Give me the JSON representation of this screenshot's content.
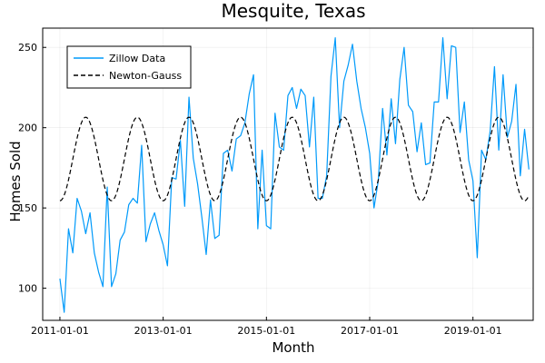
{
  "colors": {
    "zillow": "#009AFA",
    "newton": "#000000",
    "axis": "#000000",
    "background": "#ffffff"
  },
  "chart_data": {
    "type": "line",
    "title": "Mesquite, Texas",
    "xlabel": "Month",
    "ylabel": "Homes Sold",
    "xlim": [
      "2010-09-01",
      "2020-03-01"
    ],
    "ylim": [
      80,
      262
    ],
    "x_ticks": [
      "2011-01-01",
      "2013-01-01",
      "2015-01-01",
      "2017-01-01",
      "2019-01-01"
    ],
    "y_ticks": [
      100,
      150,
      200,
      250
    ],
    "grid": true,
    "legend_position": "top-left",
    "series": [
      {
        "name": "Zillow Data",
        "style": "solid",
        "start": "2011-01-01",
        "step": "month",
        "values": [
          106,
          85,
          137,
          122,
          156,
          148,
          134,
          147,
          122,
          110,
          101,
          163,
          101,
          109,
          130,
          135,
          152,
          156,
          153,
          189,
          129,
          140,
          147,
          136,
          127,
          114,
          169,
          168,
          192,
          151,
          219,
          181,
          165,
          144,
          121,
          155,
          131,
          133,
          184,
          186,
          173,
          193,
          195,
          203,
          221,
          233,
          137,
          186,
          139,
          137,
          209,
          188,
          186,
          220,
          225,
          212,
          224,
          220,
          188,
          219,
          156,
          156,
          170,
          232,
          256,
          200,
          229,
          239,
          252,
          229,
          212,
          200,
          184,
          150,
          167,
          212,
          183,
          218,
          190,
          230,
          250,
          214,
          210,
          185,
          203,
          177,
          178,
          216,
          216,
          256,
          218,
          251,
          250,
          197,
          216,
          180,
          167,
          119,
          186,
          180,
          198,
          238,
          186,
          233,
          194,
          204,
          227,
          170,
          199,
          174
        ]
      },
      {
        "name": "Newton-Gauss",
        "style": "dashed",
        "start": "2011-01-01",
        "step": "month",
        "mean": 180.5,
        "amplitude": 26,
        "period_months": 12,
        "peak_month_offset": 6,
        "count": 110
      }
    ]
  }
}
